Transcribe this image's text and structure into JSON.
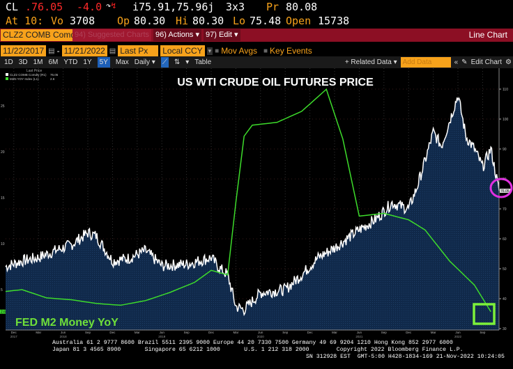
{
  "quote": {
    "ticker": "CL",
    "last": ".76.05",
    "change": "-4.0",
    "bidask": "i75.91,75.96j",
    "size": "3x3",
    "pr_label": "Pr",
    "pr": "80.08",
    "at_label": "At 10:",
    "vo_label": "Vo",
    "vo": "3708",
    "op_label": "Op",
    "op": "80.30",
    "hi_label": "Hi",
    "hi": "80.30",
    "lo_label": "Lo",
    "lo": "75.48",
    "open_label": "Open",
    "open": "15738"
  },
  "toolbar": {
    "security": "CLZ2 COMB Comdty",
    "suggested": "94) Suggested Charts",
    "actions": "96) Actions ▾",
    "edit": "97) Edit ▾",
    "chart_type": "Line Chart"
  },
  "controls": {
    "start_date": "11/22/2017",
    "end_date": "11/21/2022",
    "field": "Last Px",
    "currency": "Local CCY",
    "mov_avgs": "Mov Avgs",
    "key_events": "Key Events"
  },
  "periods": [
    "1D",
    "3D",
    "1M",
    "6M",
    "YTD",
    "1Y",
    "5Y",
    "Max"
  ],
  "active_period": "5Y",
  "frequency": "Daily ▾",
  "table": "Table",
  "related_data": "+ Related Data ▾",
  "add_data_placeholder": "Add Data",
  "edit_chart": "Edit Chart",
  "footer": {
    "line1": "Australia 61 2 9777 8600 Brazil 5511 2395 9000 Europe 44 20 7330 7500 Germany 49 69 9204 1210 Hong Kong 852 2977 6000",
    "line2": "Japan 81 3 4565 8900       Singapore 65 6212 1000       U.S. 1 212 318 2000        Copyright 2022 Bloomberg Finance L.P.",
    "line3": "SN 312928 EST  GMT-5:00 H428-1834-169 21-Nov-2022 10:24:05"
  },
  "chart_data": {
    "type": "line",
    "title": "US WTI CRUDE OIL FUTURES PRICE",
    "annotation": "FED M2 Money YoY",
    "legend_title": "Last Price",
    "legend": [
      {
        "name": "CLZ2 COMB Comdty (R1)",
        "last": "76.05"
      },
      {
        "name": "M2N YOY Index (L1)",
        "last": "2.6"
      }
    ],
    "x_range": [
      "2017-11",
      "2022-11"
    ],
    "x_ticks": [
      "Dec",
      "Mar",
      "Jun",
      "Sep",
      "Dec",
      "Mar",
      "Jun",
      "Sep",
      "Dec",
      "Mar",
      "Jun",
      "Sep",
      "Dec",
      "Mar",
      "Jun",
      "Sep",
      "Dec",
      "Mar",
      "Jun",
      "Sep"
    ],
    "x_years": [
      "2017",
      "2018",
      "2019",
      "2020",
      "2021",
      "2022"
    ],
    "right_axis": {
      "ylim": [
        25,
        120
      ],
      "ticks": [
        30,
        40,
        50,
        60,
        70,
        80,
        90,
        100,
        110
      ]
    },
    "left_axis": {
      "ylim": [
        -2.5,
        29
      ],
      "ticks": [
        5,
        10,
        15,
        20,
        25
      ]
    },
    "colors": {
      "oil": "#ffffff",
      "m2": "#3ddc2b",
      "area": "#10294a",
      "circle": "#e030e0",
      "box": "#7cf03a"
    },
    "series": [
      {
        "name": "CLZ2 COMB Comdty",
        "axis": "right",
        "points": [
          [
            "2017-11",
            50.7
          ],
          [
            "2018-01",
            52.6
          ],
          [
            "2018-03",
            53.7
          ],
          [
            "2018-05",
            56
          ],
          [
            "2018-07",
            58
          ],
          [
            "2018-09",
            62
          ],
          [
            "2018-10",
            61
          ],
          [
            "2018-12",
            52.6
          ],
          [
            "2019-02",
            53.5
          ],
          [
            "2019-04",
            56
          ],
          [
            "2019-06",
            51
          ],
          [
            "2019-09",
            51.5
          ],
          [
            "2019-12",
            53.7
          ],
          [
            "2020-01",
            50.2
          ],
          [
            "2020-02",
            48
          ],
          [
            "2020-03",
            37.4
          ],
          [
            "2020-04",
            36.3
          ],
          [
            "2020-06",
            42
          ],
          [
            "2020-09",
            43
          ],
          [
            "2020-11",
            48
          ],
          [
            "2021-01",
            53.7
          ],
          [
            "2021-03",
            57
          ],
          [
            "2021-06",
            63
          ],
          [
            "2021-08",
            66.5
          ],
          [
            "2021-10",
            72
          ],
          [
            "2021-12",
            70
          ],
          [
            "2022-01",
            77
          ],
          [
            "2022-02",
            86
          ],
          [
            "2022-03",
            95.6
          ],
          [
            "2022-04",
            91
          ],
          [
            "2022-06",
            108
          ],
          [
            "2022-07",
            94
          ],
          [
            "2022-08",
            90
          ],
          [
            "2022-09",
            84
          ],
          [
            "2022-10",
            90
          ],
          [
            "2022-11",
            76.05
          ]
        ]
      },
      {
        "name": "M2N YOY Index",
        "axis": "left",
        "points": [
          [
            "2017-11",
            4.8
          ],
          [
            "2018-01",
            5.0
          ],
          [
            "2018-04",
            4.1
          ],
          [
            "2018-07",
            3.9
          ],
          [
            "2018-10",
            3.5
          ],
          [
            "2019-01",
            3.3
          ],
          [
            "2019-04",
            3.8
          ],
          [
            "2019-07",
            4.7
          ],
          [
            "2019-10",
            5.8
          ],
          [
            "2019-12",
            7.1
          ],
          [
            "2020-02",
            6.6
          ],
          [
            "2020-03",
            14.5
          ],
          [
            "2020-04",
            21.7
          ],
          [
            "2020-05",
            22.9
          ],
          [
            "2020-08",
            23.2
          ],
          [
            "2020-11",
            24.4
          ],
          [
            "2021-02",
            26.8
          ],
          [
            "2021-04",
            21.4
          ],
          [
            "2021-06",
            13
          ],
          [
            "2021-09",
            13.3
          ],
          [
            "2021-12",
            12.6
          ],
          [
            "2022-02",
            11.5
          ],
          [
            "2022-05",
            8.1
          ],
          [
            "2022-08",
            5.5
          ],
          [
            "2022-10",
            2.6
          ]
        ]
      }
    ]
  }
}
